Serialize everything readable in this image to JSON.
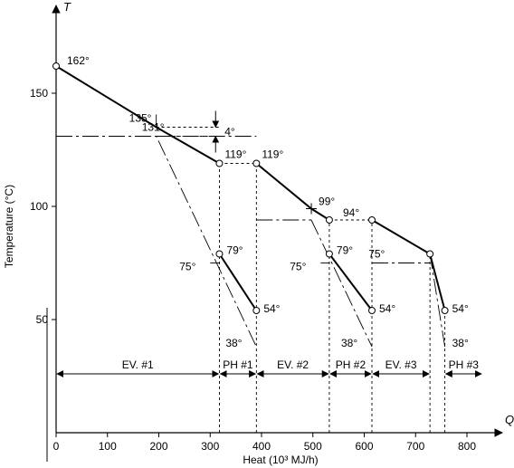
{
  "chart_data": {
    "type": "line",
    "xlabel": "Heat (10³ MJ/h)",
    "ylabel": "Temperature (°C)",
    "x_axis_letter": "Q",
    "y_axis_letter": "T",
    "xlim": [
      0,
      830
    ],
    "ylim": [
      0,
      175
    ],
    "x_ticks": [
      0,
      100,
      200,
      300,
      400,
      500,
      600,
      700,
      800
    ],
    "y_ticks": [
      50,
      100,
      150
    ],
    "hot_curve": {
      "segments": [
        {
          "points": [
            [
              0,
              162
            ],
            [
              195,
              135
            ],
            [
              318,
              119
            ]
          ]
        },
        {
          "points": [
            [
              390,
              119
            ],
            [
              497,
              99
            ],
            [
              532,
              94
            ]
          ]
        },
        {
          "points": [
            [
              615,
              94
            ],
            [
              728,
              79
            ],
            [
              757,
              54
            ]
          ]
        },
        {
          "points": [
            [
              318,
              79
            ],
            [
              390,
              54
            ]
          ]
        },
        {
          "points": [
            [
              532,
              79
            ],
            [
              615,
              54
            ]
          ]
        }
      ]
    },
    "cold_curves": [
      {
        "points": [
          [
            0,
            131
          ],
          [
            195,
            131
          ],
          [
            390,
            38
          ]
        ]
      },
      {
        "points": [
          [
            497,
            94
          ],
          [
            615,
            38
          ]
        ]
      },
      {
        "points": [
          [
            757,
            38
          ],
          [
            728,
            79
          ]
        ]
      }
    ],
    "short_ticks": [
      {
        "points": [
          [
            300,
            75
          ],
          [
            318,
            75
          ]
        ]
      },
      {
        "points": [
          [
            515,
            75
          ],
          [
            532,
            75
          ]
        ]
      },
      {
        "points": [
          [
            615,
            75
          ],
          [
            728,
            75
          ]
        ]
      }
    ],
    "horizontal_dashes": [
      {
        "points": [
          [
            318,
            119
          ],
          [
            390,
            119
          ]
        ]
      },
      {
        "points": [
          [
            532,
            94
          ],
          [
            615,
            94
          ]
        ]
      },
      {
        "points": [
          [
            195,
            131
          ],
          [
            390,
            131
          ]
        ]
      }
    ],
    "vertical_dashes": [
      318,
      390,
      532,
      615,
      728,
      757
    ],
    "markers": [
      [
        0,
        162
      ],
      [
        318,
        119
      ],
      [
        390,
        119
      ],
      [
        532,
        94
      ],
      [
        615,
        94
      ],
      [
        728,
        79
      ],
      [
        757,
        54
      ],
      [
        318,
        79
      ],
      [
        390,
        54
      ],
      [
        532,
        79
      ],
      [
        615,
        54
      ]
    ],
    "cross_marker": [
      497,
      99
    ],
    "zones": [
      {
        "label": "EV. #1",
        "from": 0,
        "to": 318
      },
      {
        "label": "PH #1",
        "from": 318,
        "to": 390
      },
      {
        "label": "EV. #2",
        "from": 390,
        "to": 532
      },
      {
        "label": "PH #2",
        "from": 532,
        "to": 615
      },
      {
        "label": "EV. #3",
        "from": 615,
        "to": 728
      },
      {
        "label": "PH #3",
        "from": 757,
        "to": 830
      }
    ],
    "annotations": [
      {
        "text": "162°",
        "x": 0,
        "y": 162
      },
      {
        "text": "135°",
        "x": 195,
        "y": 135
      },
      {
        "text": "131°",
        "x": 100,
        "y": 131
      },
      {
        "text": "4°",
        "x": 300,
        "y": 133
      },
      {
        "text": "119°",
        "x": 318,
        "y": 119
      },
      {
        "text": "119°",
        "x": 390,
        "y": 119
      },
      {
        "text": "99°",
        "x": 497,
        "y": 99
      },
      {
        "text": "94°",
        "x": 615,
        "y": 94
      },
      {
        "text": "79°",
        "x": 318,
        "y": 79
      },
      {
        "text": "75°",
        "x": 300,
        "y": 75
      },
      {
        "text": "54°",
        "x": 390,
        "y": 54
      },
      {
        "text": "38°",
        "x": 390,
        "y": 38
      },
      {
        "text": "79°",
        "x": 532,
        "y": 79
      },
      {
        "text": "75°",
        "x": 515,
        "y": 75
      },
      {
        "text": "54°",
        "x": 615,
        "y": 54
      },
      {
        "text": "38°",
        "x": 615,
        "y": 38
      },
      {
        "text": "75°",
        "x": 640,
        "y": 75
      },
      {
        "text": "54°",
        "x": 757,
        "y": 54
      },
      {
        "text": "38°",
        "x": 757,
        "y": 38
      }
    ]
  }
}
